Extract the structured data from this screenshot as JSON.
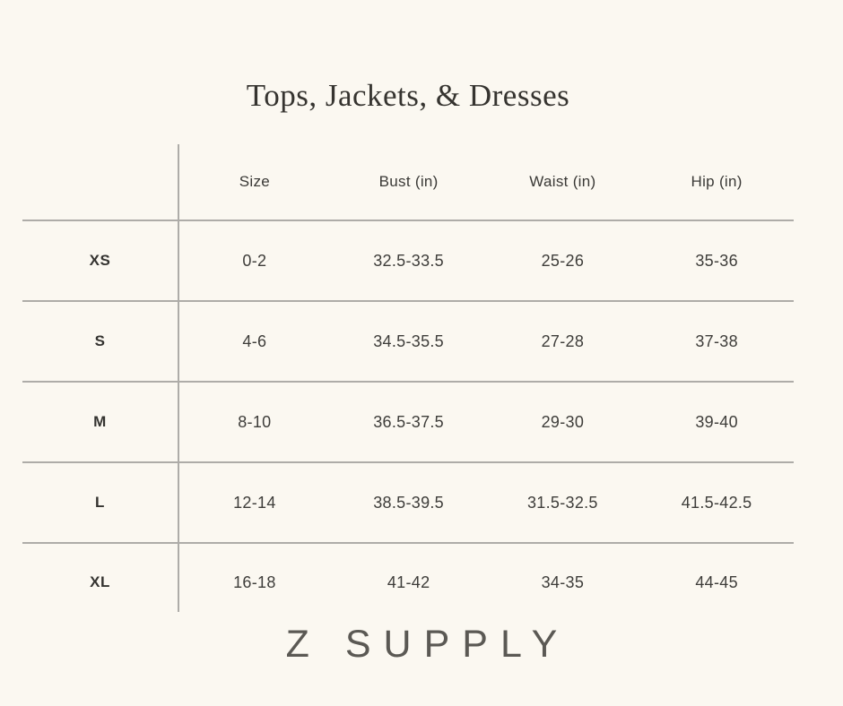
{
  "page": {
    "title": "Tops, Jackets, & Dresses",
    "brand": "Z SUPPLY"
  },
  "colors": {
    "background": "#fbf8f1",
    "rule_gray": "#aeaca8",
    "text_dark": "#3a3936",
    "brand_gray": "#5b5954"
  },
  "chart_data": {
    "type": "table",
    "title": "Tops, Jackets, & Dresses",
    "columns": [
      "Size",
      "Bust (in)",
      "Waist (in)",
      "Hip (in)"
    ],
    "row_labels": [
      "XS",
      "S",
      "M",
      "L",
      "XL"
    ],
    "rows": [
      [
        "0-2",
        "32.5-33.5",
        "25-26",
        "35-36"
      ],
      [
        "4-6",
        "34.5-35.5",
        "27-28",
        "37-38"
      ],
      [
        "8-10",
        "36.5-37.5",
        "29-30",
        "39-40"
      ],
      [
        "12-14",
        "38.5-39.5",
        "31.5-32.5",
        "41.5-42.5"
      ],
      [
        "16-18",
        "41-42",
        "34-35",
        "44-45"
      ]
    ],
    "footer": "Z SUPPLY",
    "layout": {
      "row_label_column_divider": true,
      "horizontal_rules_between_rows": true,
      "no_outer_border": true
    }
  }
}
